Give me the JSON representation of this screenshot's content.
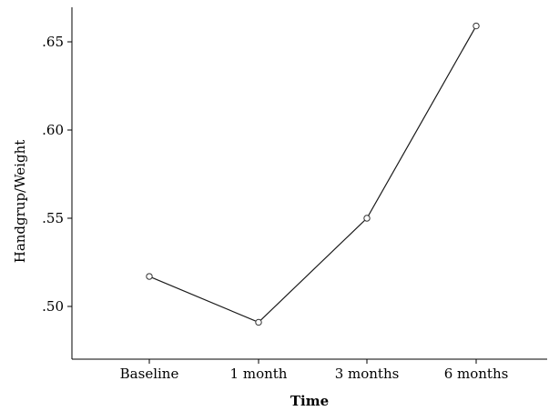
{
  "chart_data": {
    "type": "line",
    "categories": [
      "Baseline",
      "1 month",
      "3 months",
      "6 months"
    ],
    "series": [
      {
        "values": [
          0.517,
          0.491,
          0.55,
          0.659
        ]
      }
    ],
    "xlabel": "Time",
    "ylabel": "Handgrup/Weight",
    "ylim": [
      0.48,
      0.67
    ],
    "yticks": [
      0.5,
      0.55,
      0.6,
      0.65
    ],
    "ytick_labels": [
      ".50",
      ".55",
      ".60",
      ".65"
    ],
    "grid": false,
    "marker": "open-circle"
  }
}
